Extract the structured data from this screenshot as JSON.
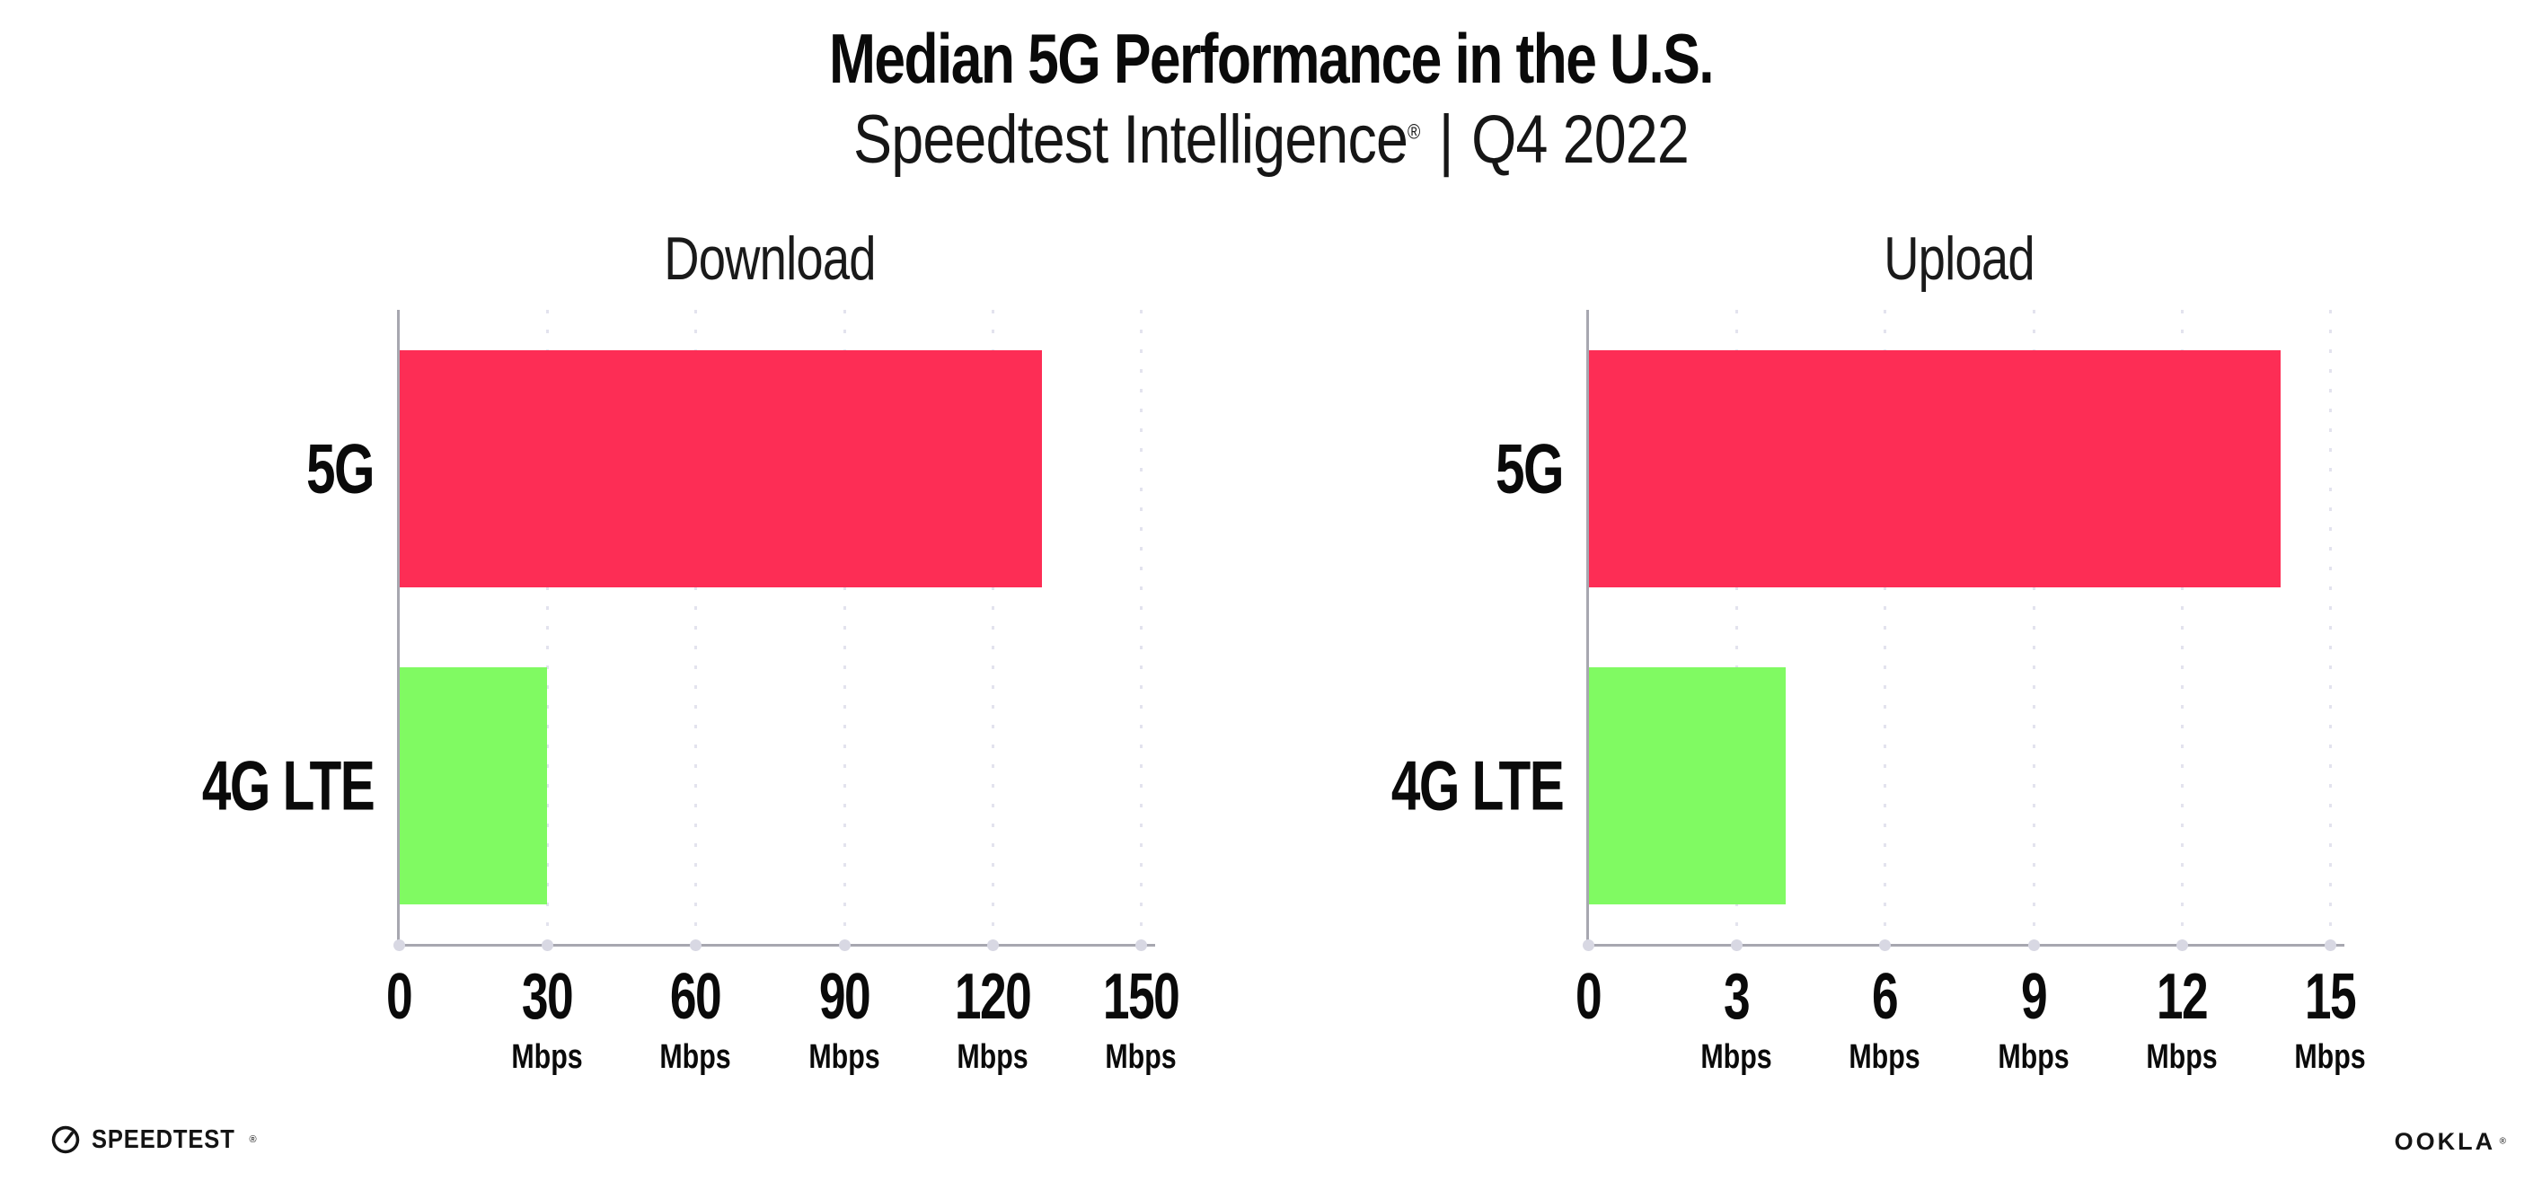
{
  "header": {
    "title": "Median 5G Performance in the U.S.",
    "subtitle": {
      "brand": "Speedtest Intelligence",
      "registered": "®",
      "separator": "|",
      "period": "Q4 2022"
    }
  },
  "chart_data": [
    {
      "type": "bar",
      "orientation": "horizontal",
      "title": "Download",
      "categories": [
        "5G",
        "4G LTE"
      ],
      "values": [
        130,
        30
      ],
      "unit": "Mbps",
      "xlim": [
        0,
        150
      ],
      "xticks": [
        0,
        30,
        60,
        90,
        120,
        150
      ],
      "bar_colors": [
        "#FD2D55",
        "#80FA62"
      ],
      "grid": "vertical-dotted",
      "legend": "none"
    },
    {
      "type": "bar",
      "orientation": "horizontal",
      "title": "Upload",
      "categories": [
        "5G",
        "4G LTE"
      ],
      "values": [
        14,
        4
      ],
      "unit": "Mbps",
      "xlim": [
        0,
        15
      ],
      "xticks": [
        0,
        3,
        6,
        9,
        12,
        15
      ],
      "bar_colors": [
        "#FD2D55",
        "#80FA62"
      ],
      "grid": "vertical-dotted",
      "legend": "none"
    }
  ],
  "colors": {
    "bar_5g": "#FD2D55",
    "bar_4g_lte": "#80FA62",
    "axis": "#a7a7b0",
    "gridline": "#e3e3ee",
    "tick_dot": "#d8d8e3",
    "text": "#0a0a0a"
  },
  "footer": {
    "speedtest_logo": "SPEEDTEST",
    "speedtest_registered": "®",
    "gauge_icon": "speedtest-gauge",
    "ookla_logo": "OOKLA",
    "ookla_registered": "®"
  }
}
